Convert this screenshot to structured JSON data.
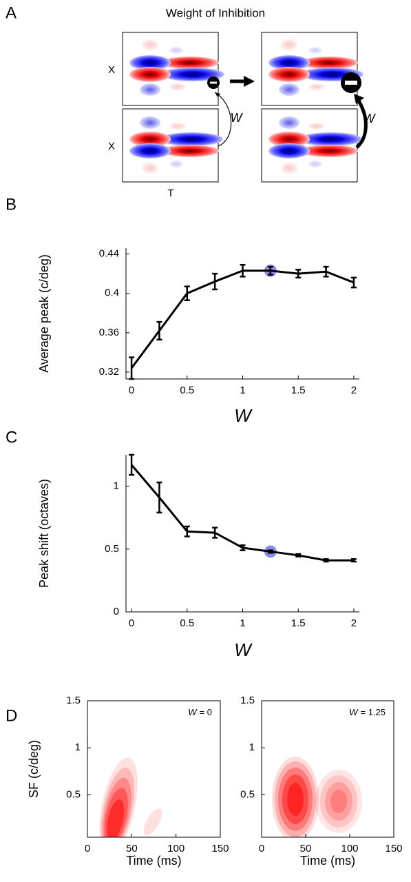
{
  "panel_labels": [
    "A",
    "B",
    "C",
    "D"
  ],
  "diagram": {
    "title": "Weight of Inhibition",
    "row_labels": [
      "X",
      "X"
    ],
    "column_label": "T",
    "weight_labels": [
      "W",
      "W"
    ]
  },
  "chart_data": [
    {
      "type": "line",
      "x": [
        0,
        0.25,
        0.5,
        0.75,
        1,
        1.25,
        1.5,
        1.75,
        2
      ],
      "values": [
        0.324,
        0.362,
        0.4,
        0.412,
        0.423,
        0.423,
        0.42,
        0.422,
        0.411
      ],
      "errors": [
        0.011,
        0.009,
        0.007,
        0.008,
        0.006,
        0.004,
        0.004,
        0.005,
        0.005
      ],
      "color": "#000000",
      "highlight_x": 1.25,
      "highlight_color": "#8a8ae6",
      "xlabel": "W",
      "ylabel": "Average peak (c/deg)",
      "xlim": [
        -0.05,
        2.05
      ],
      "ylim": [
        0.313,
        0.446
      ],
      "xticks": [
        0,
        0.5,
        1,
        1.5,
        2
      ],
      "yticks": [
        0.32,
        0.36,
        0.4,
        0.44
      ]
    },
    {
      "type": "line",
      "x": [
        0,
        0.25,
        0.5,
        0.75,
        1,
        1.25,
        1.5,
        1.75,
        2
      ],
      "values": [
        1.17,
        0.91,
        0.64,
        0.63,
        0.51,
        0.48,
        0.45,
        0.41,
        0.41
      ],
      "errors": [
        0.08,
        0.12,
        0.04,
        0.04,
        0.02,
        0.01,
        0.01,
        0.01,
        0.01
      ],
      "color": "#000000",
      "highlight_x": 1.25,
      "highlight_color": "#8a8ae6",
      "xlabel": "W",
      "ylabel": "Peak shift (octaves)",
      "xlim": [
        -0.05,
        2.05
      ],
      "ylim": [
        0,
        1.25
      ],
      "xticks": [
        0,
        0.5,
        1,
        1.5,
        2
      ],
      "yticks": [
        0,
        0.5,
        1
      ]
    },
    {
      "type": "contour",
      "annotation": [
        "W",
        "= 0"
      ],
      "xlabel": "Time (ms)",
      "ylabel": "SF (c/deg)",
      "xlim": [
        0,
        150
      ],
      "ylim": [
        0.05,
        1.5
      ],
      "xticks": [
        0,
        50,
        100,
        150
      ],
      "yticks": [
        0.5,
        1,
        1.5
      ]
    },
    {
      "type": "contour",
      "annotation": [
        "W",
        "= 1.25"
      ],
      "xlabel": "Time (ms)",
      "xlim": [
        0,
        150
      ],
      "ylim": [
        0.05,
        1.5
      ],
      "xticks": [
        0,
        50,
        100,
        150
      ],
      "yticks": [
        0.5,
        1,
        1.5
      ]
    }
  ]
}
